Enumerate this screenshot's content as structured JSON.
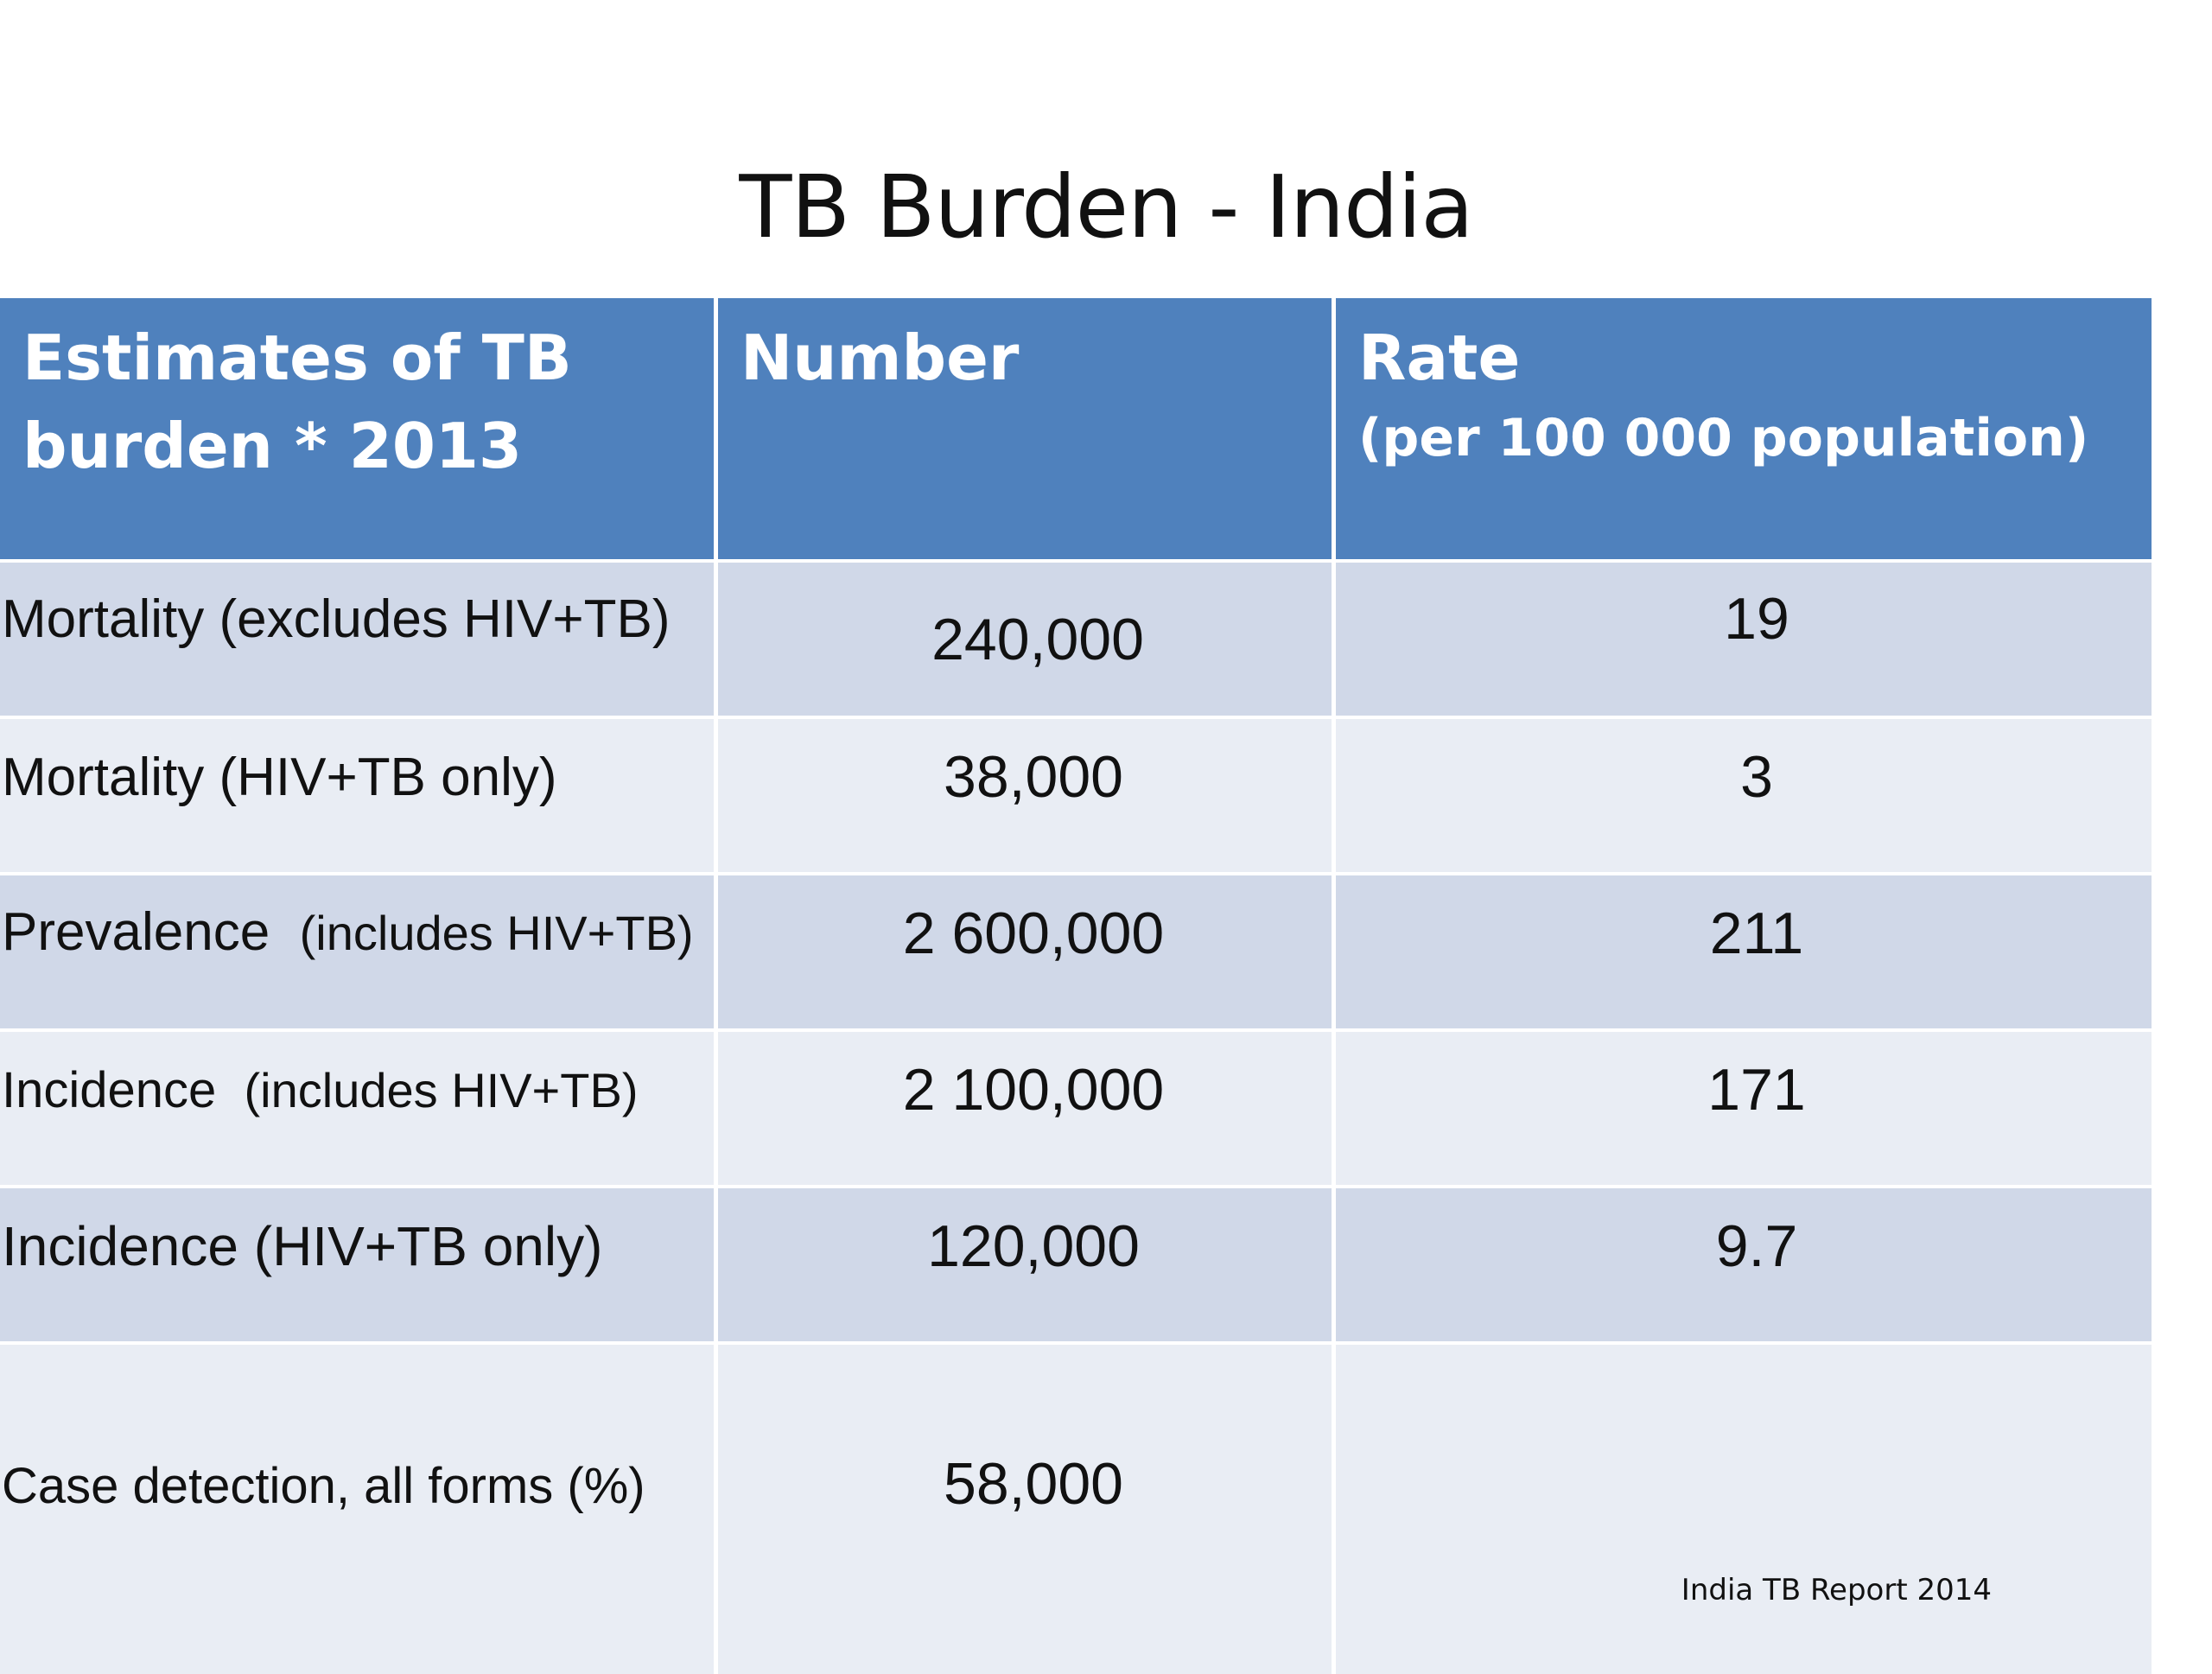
{
  "title": "TB Burden - India",
  "table": {
    "headers": {
      "col1_line1": "Estimates of TB",
      "col1_line2": "burden * 2013",
      "col2": "Number",
      "col3_line1": "Rate",
      "col3_line2": "(per 100 000 population)"
    },
    "rows": [
      {
        "label": "Mortality (excludes HIV+TB)",
        "label_suffix": "",
        "number": "240,000",
        "rate": "19"
      },
      {
        "label": "Mortality (HIV+TB only)",
        "label_suffix": "",
        "number": "38,000",
        "rate": "3"
      },
      {
        "label": "Prevalence",
        "label_suffix": "(includes HIV+TB)",
        "number": "2 600,000",
        "rate": "211"
      },
      {
        "label": "Incidence",
        "label_suffix": "(includes HIV+TB)",
        "number": "2 100,000",
        "rate": "171"
      },
      {
        "label": "Incidence (HIV+TB only)",
        "label_suffix": "",
        "number": "120,000",
        "rate": "9.7"
      },
      {
        "label": "Case detection, all forms (%)",
        "label_suffix": "",
        "number": "58,000",
        "rate": ""
      }
    ]
  },
  "source_note": "India TB Report 2014",
  "colors": {
    "header_bg": "#4f81bd",
    "row_odd_bg": "#d0d8e8",
    "row_even_bg": "#e9edf4"
  }
}
